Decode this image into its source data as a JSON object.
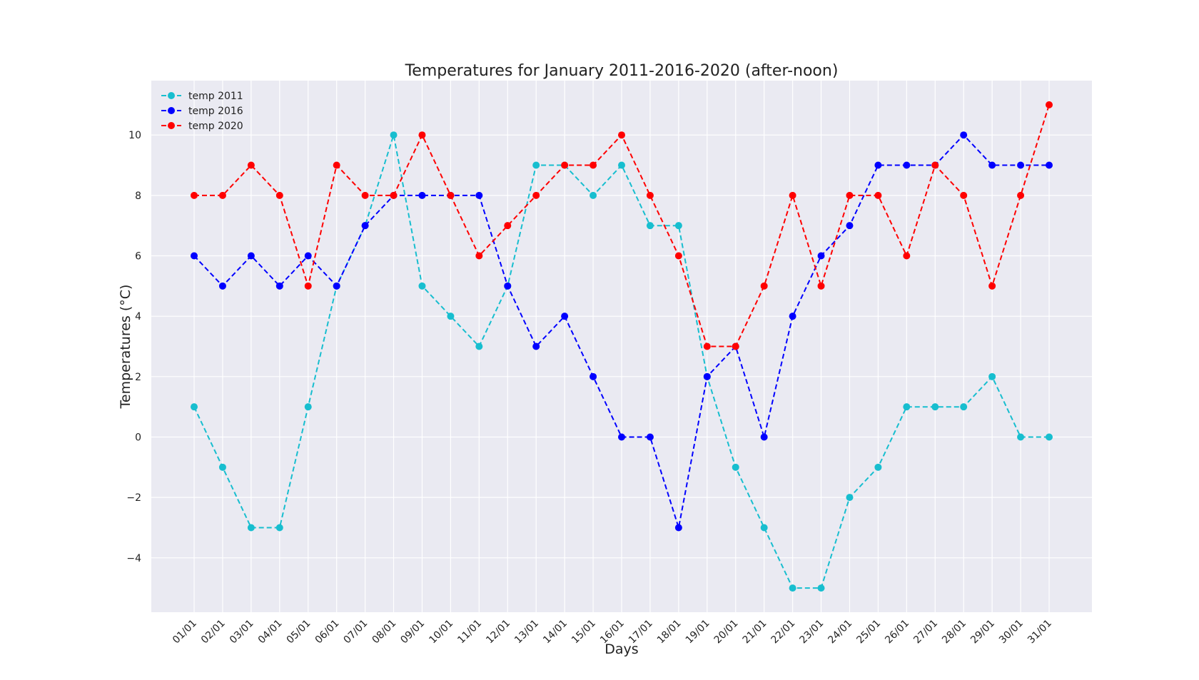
{
  "chart_data": {
    "type": "line",
    "title": "Temperatures for January 2011-2016-2020 (after-noon)",
    "xlabel": "Days",
    "ylabel": "Temperatures (°C)",
    "categories": [
      "01/01",
      "02/01",
      "03/01",
      "04/01",
      "05/01",
      "06/01",
      "07/01",
      "08/01",
      "09/01",
      "10/01",
      "11/01",
      "12/01",
      "13/01",
      "14/01",
      "15/01",
      "16/01",
      "17/01",
      "18/01",
      "19/01",
      "20/01",
      "21/01",
      "22/01",
      "23/01",
      "24/01",
      "25/01",
      "26/01",
      "27/01",
      "28/01",
      "29/01",
      "30/01",
      "31/01"
    ],
    "yticks": [
      -4,
      -2,
      0,
      2,
      4,
      6,
      8,
      10
    ],
    "ytick_labels": [
      "−4",
      "−2",
      "0",
      "2",
      "4",
      "6",
      "8",
      "10"
    ],
    "ylim": [
      -5.8,
      11.8
    ],
    "grid": true,
    "legend_position": "top-left",
    "line_style": "dashed",
    "marker": "circle",
    "series": [
      {
        "name": "temp 2011",
        "color": "#17becf",
        "values": [
          1,
          -1,
          -3,
          -3,
          1,
          5,
          7,
          10,
          5,
          4,
          3,
          5,
          9,
          9,
          8,
          9,
          7,
          7,
          2,
          -1,
          -3,
          -5,
          -5,
          -2,
          -1,
          1,
          1,
          1,
          2,
          0,
          0
        ]
      },
      {
        "name": "temp 2016",
        "color": "#0000ff",
        "values": [
          6,
          5,
          6,
          5,
          6,
          5,
          7,
          8,
          8,
          8,
          8,
          5,
          3,
          4,
          2,
          0,
          0,
          -3,
          2,
          3,
          0,
          4,
          6,
          7,
          9,
          9,
          9,
          10,
          9,
          9,
          9
        ]
      },
      {
        "name": "temp 2020",
        "color": "#ff0000",
        "values": [
          8,
          8,
          9,
          8,
          5,
          9,
          8,
          8,
          10,
          8,
          6,
          7,
          8,
          9,
          9,
          10,
          8,
          6,
          3,
          3,
          5,
          8,
          5,
          8,
          8,
          6,
          9,
          8,
          5,
          8,
          11
        ]
      }
    ]
  }
}
